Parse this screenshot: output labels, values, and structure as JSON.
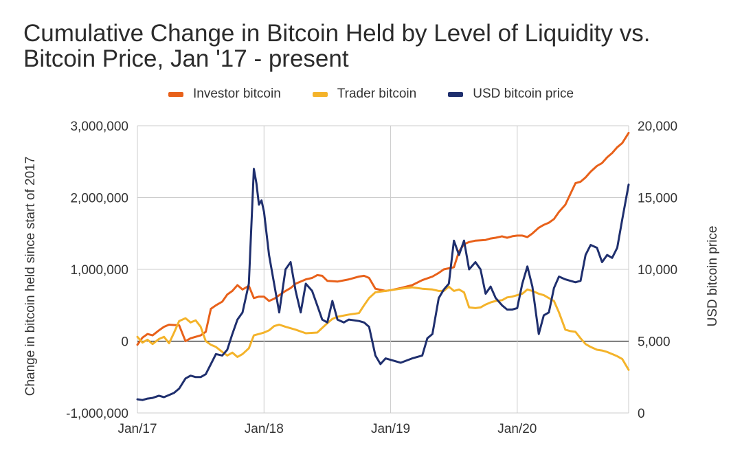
{
  "chart_data": {
    "type": "line",
    "title": "Cumulative Change in Bitcoin Held by Level of Liquidity vs. Bitcoin Price, Jan '17 - present",
    "ylabel": "Change in bitcoin held since start of 2017",
    "y2label": "USD bitcoin price",
    "xlabel": "",
    "x_ticks": [
      "Jan/17",
      "Jan/18",
      "Jan/19",
      "Jan/20"
    ],
    "y_ticks": [
      "3,000,000",
      "2,000,000",
      "1,000,000",
      "0",
      "-1,000,000"
    ],
    "y2_ticks": [
      "20,000",
      "15,000",
      "10,000",
      "5,000",
      "0"
    ],
    "ylim": [
      -1000000,
      3000000
    ],
    "y2lim": [
      0,
      20000
    ],
    "xlim": [
      2017.0,
      2020.88
    ],
    "grid": true,
    "legend_position": "top",
    "series": [
      {
        "name": "Investor bitcoin",
        "axis": "left",
        "color": "#E8611A",
        "points": [
          [
            2017.0,
            -50000
          ],
          [
            2017.04,
            50000
          ],
          [
            2017.08,
            100000
          ],
          [
            2017.12,
            80000
          ],
          [
            2017.17,
            150000
          ],
          [
            2017.21,
            200000
          ],
          [
            2017.25,
            230000
          ],
          [
            2017.33,
            220000
          ],
          [
            2017.38,
            0
          ],
          [
            2017.42,
            40000
          ],
          [
            2017.5,
            80000
          ],
          [
            2017.54,
            130000
          ],
          [
            2017.58,
            450000
          ],
          [
            2017.62,
            500000
          ],
          [
            2017.67,
            550000
          ],
          [
            2017.71,
            650000
          ],
          [
            2017.75,
            700000
          ],
          [
            2017.79,
            780000
          ],
          [
            2017.83,
            720000
          ],
          [
            2017.88,
            770000
          ],
          [
            2017.92,
            600000
          ],
          [
            2017.96,
            620000
          ],
          [
            2018.0,
            620000
          ],
          [
            2018.04,
            560000
          ],
          [
            2018.08,
            590000
          ],
          [
            2018.12,
            640000
          ],
          [
            2018.17,
            700000
          ],
          [
            2018.21,
            740000
          ],
          [
            2018.25,
            800000
          ],
          [
            2018.33,
            860000
          ],
          [
            2018.38,
            880000
          ],
          [
            2018.42,
            920000
          ],
          [
            2018.46,
            910000
          ],
          [
            2018.5,
            840000
          ],
          [
            2018.58,
            830000
          ],
          [
            2018.67,
            860000
          ],
          [
            2018.75,
            900000
          ],
          [
            2018.79,
            910000
          ],
          [
            2018.83,
            880000
          ],
          [
            2018.88,
            730000
          ],
          [
            2018.96,
            700000
          ],
          [
            2019.0,
            710000
          ],
          [
            2019.08,
            740000
          ],
          [
            2019.17,
            780000
          ],
          [
            2019.25,
            850000
          ],
          [
            2019.33,
            900000
          ],
          [
            2019.38,
            950000
          ],
          [
            2019.42,
            1000000
          ],
          [
            2019.5,
            1030000
          ],
          [
            2019.54,
            1250000
          ],
          [
            2019.58,
            1350000
          ],
          [
            2019.62,
            1380000
          ],
          [
            2019.67,
            1400000
          ],
          [
            2019.75,
            1410000
          ],
          [
            2019.79,
            1430000
          ],
          [
            2019.83,
            1440000
          ],
          [
            2019.88,
            1460000
          ],
          [
            2019.92,
            1440000
          ],
          [
            2019.96,
            1460000
          ],
          [
            2020.0,
            1470000
          ],
          [
            2020.04,
            1470000
          ],
          [
            2020.08,
            1450000
          ],
          [
            2020.12,
            1500000
          ],
          [
            2020.17,
            1580000
          ],
          [
            2020.21,
            1620000
          ],
          [
            2020.25,
            1650000
          ],
          [
            2020.29,
            1700000
          ],
          [
            2020.33,
            1800000
          ],
          [
            2020.38,
            1900000
          ],
          [
            2020.42,
            2050000
          ],
          [
            2020.46,
            2200000
          ],
          [
            2020.5,
            2220000
          ],
          [
            2020.54,
            2280000
          ],
          [
            2020.58,
            2360000
          ],
          [
            2020.63,
            2440000
          ],
          [
            2020.67,
            2480000
          ],
          [
            2020.71,
            2560000
          ],
          [
            2020.75,
            2620000
          ],
          [
            2020.79,
            2700000
          ],
          [
            2020.83,
            2760000
          ],
          [
            2020.88,
            2900000
          ]
        ]
      },
      {
        "name": "Trader bitcoin",
        "axis": "left",
        "color": "#F4B32A",
        "points": [
          [
            2017.0,
            60000
          ],
          [
            2017.04,
            -20000
          ],
          [
            2017.08,
            20000
          ],
          [
            2017.12,
            -40000
          ],
          [
            2017.17,
            30000
          ],
          [
            2017.21,
            60000
          ],
          [
            2017.25,
            -30000
          ],
          [
            2017.29,
            120000
          ],
          [
            2017.33,
            280000
          ],
          [
            2017.38,
            320000
          ],
          [
            2017.42,
            260000
          ],
          [
            2017.46,
            290000
          ],
          [
            2017.5,
            200000
          ],
          [
            2017.54,
            0
          ],
          [
            2017.58,
            -50000
          ],
          [
            2017.62,
            -80000
          ],
          [
            2017.67,
            -150000
          ],
          [
            2017.71,
            -200000
          ],
          [
            2017.75,
            -160000
          ],
          [
            2017.79,
            -220000
          ],
          [
            2017.83,
            -180000
          ],
          [
            2017.88,
            -100000
          ],
          [
            2017.92,
            80000
          ],
          [
            2017.96,
            100000
          ],
          [
            2018.0,
            120000
          ],
          [
            2018.04,
            150000
          ],
          [
            2018.08,
            210000
          ],
          [
            2018.12,
            230000
          ],
          [
            2018.17,
            200000
          ],
          [
            2018.21,
            180000
          ],
          [
            2018.25,
            160000
          ],
          [
            2018.33,
            110000
          ],
          [
            2018.42,
            120000
          ],
          [
            2018.5,
            250000
          ],
          [
            2018.54,
            310000
          ],
          [
            2018.58,
            340000
          ],
          [
            2018.67,
            370000
          ],
          [
            2018.75,
            390000
          ],
          [
            2018.79,
            500000
          ],
          [
            2018.83,
            600000
          ],
          [
            2018.88,
            680000
          ],
          [
            2018.96,
            700000
          ],
          [
            2019.0,
            710000
          ],
          [
            2019.08,
            730000
          ],
          [
            2019.17,
            750000
          ],
          [
            2019.25,
            730000
          ],
          [
            2019.33,
            720000
          ],
          [
            2019.38,
            700000
          ],
          [
            2019.42,
            700000
          ],
          [
            2019.46,
            760000
          ],
          [
            2019.5,
            700000
          ],
          [
            2019.54,
            720000
          ],
          [
            2019.58,
            680000
          ],
          [
            2019.62,
            470000
          ],
          [
            2019.67,
            460000
          ],
          [
            2019.71,
            470000
          ],
          [
            2019.75,
            510000
          ],
          [
            2019.79,
            540000
          ],
          [
            2019.83,
            560000
          ],
          [
            2019.88,
            570000
          ],
          [
            2019.92,
            610000
          ],
          [
            2019.96,
            620000
          ],
          [
            2020.0,
            640000
          ],
          [
            2020.04,
            660000
          ],
          [
            2020.08,
            720000
          ],
          [
            2020.12,
            700000
          ],
          [
            2020.17,
            660000
          ],
          [
            2020.21,
            640000
          ],
          [
            2020.25,
            600000
          ],
          [
            2020.29,
            560000
          ],
          [
            2020.33,
            400000
          ],
          [
            2020.38,
            160000
          ],
          [
            2020.42,
            140000
          ],
          [
            2020.46,
            130000
          ],
          [
            2020.5,
            40000
          ],
          [
            2020.54,
            -40000
          ],
          [
            2020.58,
            -80000
          ],
          [
            2020.63,
            -120000
          ],
          [
            2020.67,
            -130000
          ],
          [
            2020.71,
            -150000
          ],
          [
            2020.75,
            -180000
          ],
          [
            2020.79,
            -210000
          ],
          [
            2020.83,
            -250000
          ],
          [
            2020.88,
            -400000
          ]
        ]
      },
      {
        "name": "USD bitcoin price",
        "axis": "right",
        "color": "#1F2F6E",
        "points": [
          [
            2017.0,
            950
          ],
          [
            2017.04,
            900
          ],
          [
            2017.08,
            1000
          ],
          [
            2017.12,
            1050
          ],
          [
            2017.17,
            1200
          ],
          [
            2017.21,
            1100
          ],
          [
            2017.25,
            1250
          ],
          [
            2017.29,
            1400
          ],
          [
            2017.33,
            1700
          ],
          [
            2017.38,
            2400
          ],
          [
            2017.42,
            2600
          ],
          [
            2017.46,
            2500
          ],
          [
            2017.5,
            2500
          ],
          [
            2017.54,
            2700
          ],
          [
            2017.58,
            3400
          ],
          [
            2017.62,
            4100
          ],
          [
            2017.67,
            4000
          ],
          [
            2017.71,
            4400
          ],
          [
            2017.75,
            5500
          ],
          [
            2017.79,
            6500
          ],
          [
            2017.83,
            7000
          ],
          [
            2017.88,
            9000
          ],
          [
            2017.92,
            17000
          ],
          [
            2017.94,
            16000
          ],
          [
            2017.96,
            14500
          ],
          [
            2017.98,
            14800
          ],
          [
            2018.0,
            14000
          ],
          [
            2018.04,
            11000
          ],
          [
            2018.08,
            9000
          ],
          [
            2018.12,
            7000
          ],
          [
            2018.17,
            10000
          ],
          [
            2018.21,
            10500
          ],
          [
            2018.25,
            8500
          ],
          [
            2018.29,
            7000
          ],
          [
            2018.33,
            9000
          ],
          [
            2018.38,
            8500
          ],
          [
            2018.42,
            7500
          ],
          [
            2018.46,
            6500
          ],
          [
            2018.5,
            6300
          ],
          [
            2018.54,
            7800
          ],
          [
            2018.58,
            6500
          ],
          [
            2018.63,
            6300
          ],
          [
            2018.67,
            6500
          ],
          [
            2018.75,
            6400
          ],
          [
            2018.79,
            6300
          ],
          [
            2018.83,
            6000
          ],
          [
            2018.88,
            4000
          ],
          [
            2018.92,
            3400
          ],
          [
            2018.96,
            3800
          ],
          [
            2019.0,
            3700
          ],
          [
            2019.08,
            3500
          ],
          [
            2019.17,
            3800
          ],
          [
            2019.25,
            4000
          ],
          [
            2019.29,
            5200
          ],
          [
            2019.33,
            5500
          ],
          [
            2019.38,
            8000
          ],
          [
            2019.42,
            8600
          ],
          [
            2019.46,
            9000
          ],
          [
            2019.5,
            12000
          ],
          [
            2019.54,
            11000
          ],
          [
            2019.58,
            12000
          ],
          [
            2019.62,
            10000
          ],
          [
            2019.67,
            10500
          ],
          [
            2019.71,
            10000
          ],
          [
            2019.75,
            8300
          ],
          [
            2019.79,
            8800
          ],
          [
            2019.83,
            8000
          ],
          [
            2019.88,
            7500
          ],
          [
            2019.92,
            7200
          ],
          [
            2019.96,
            7200
          ],
          [
            2020.0,
            7300
          ],
          [
            2020.04,
            9000
          ],
          [
            2020.08,
            10200
          ],
          [
            2020.12,
            8800
          ],
          [
            2020.17,
            5500
          ],
          [
            2020.21,
            6800
          ],
          [
            2020.25,
            7000
          ],
          [
            2020.29,
            8700
          ],
          [
            2020.33,
            9500
          ],
          [
            2020.38,
            9300
          ],
          [
            2020.42,
            9200
          ],
          [
            2020.46,
            9100
          ],
          [
            2020.5,
            9200
          ],
          [
            2020.54,
            11000
          ],
          [
            2020.58,
            11700
          ],
          [
            2020.63,
            11500
          ],
          [
            2020.67,
            10500
          ],
          [
            2020.71,
            11000
          ],
          [
            2020.75,
            10800
          ],
          [
            2020.79,
            11500
          ],
          [
            2020.83,
            13500
          ],
          [
            2020.88,
            15900
          ]
        ]
      }
    ]
  }
}
